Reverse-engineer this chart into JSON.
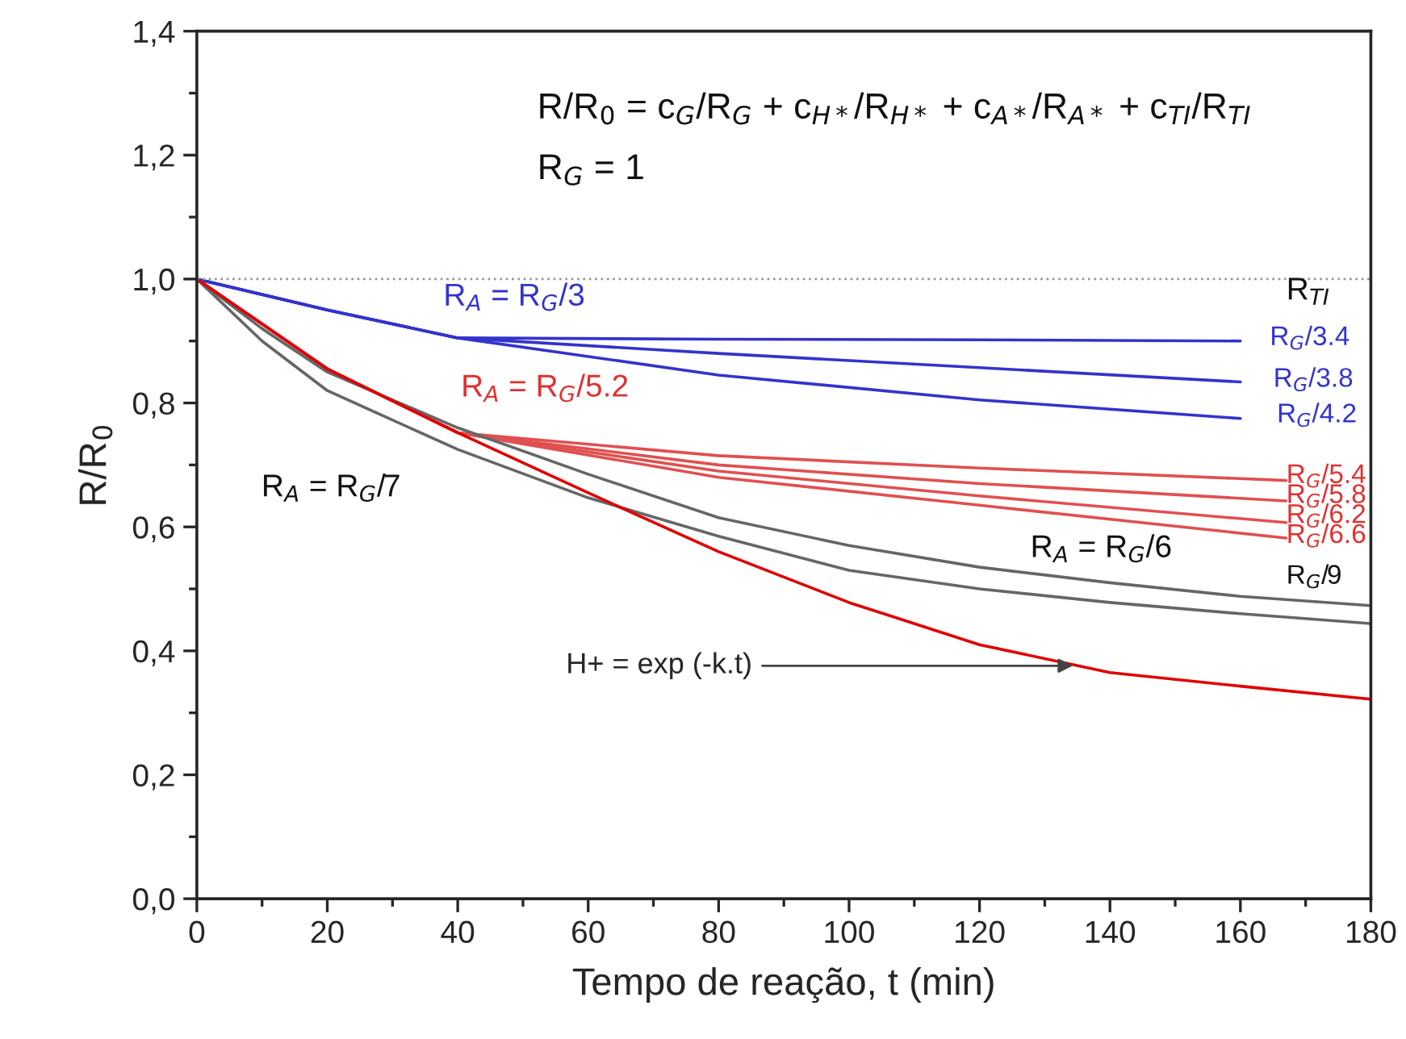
{
  "chart_data": {
    "type": "line",
    "xlabel": "Tempo de reação, t (min)",
    "ylabel": "R/R$_{0}$",
    "xlim": [
      0,
      180
    ],
    "xticks": [
      0,
      20,
      40,
      60,
      80,
      100,
      120,
      140,
      160,
      180
    ],
    "ylim": [
      0,
      1.4
    ],
    "yticks": [
      {
        "value": 0,
        "label": "0,0"
      },
      {
        "value": 0.2,
        "label": "0,2"
      },
      {
        "value": 0.4,
        "label": "0,4"
      },
      {
        "value": 0.6,
        "label": "0,6"
      },
      {
        "value": 0.8,
        "label": "0,8"
      },
      {
        "value": 1.0,
        "label": "1,0"
      },
      {
        "value": 1.2,
        "label": "1,2"
      },
      {
        "value": 1.4,
        "label": "1,4"
      }
    ],
    "grid": false,
    "marker": "none",
    "line_style": "solid",
    "ref_lines": [
      {
        "axis": "y",
        "value": 1.0,
        "color": "#999999",
        "line_style": "dotted"
      }
    ],
    "series": [
      {
        "color": "#3333cc",
        "x": [
          0,
          20,
          40,
          80,
          120,
          160
        ],
        "values": [
          1.0,
          0.95,
          0.905,
          0.903,
          0.902,
          0.9
        ]
      },
      {
        "color": "#3333cc",
        "x": [
          0,
          20,
          40,
          80,
          120,
          160
        ],
        "values": [
          1.0,
          0.95,
          0.905,
          0.88,
          0.857,
          0.834
        ]
      },
      {
        "color": "#3333cc",
        "x": [
          0,
          20,
          40,
          80,
          120,
          160
        ],
        "values": [
          1.0,
          0.95,
          0.905,
          0.845,
          0.805,
          0.775
        ]
      },
      {
        "color": "#e05050",
        "x": [
          0,
          20,
          40,
          80,
          120,
          167
        ],
        "values": [
          1.0,
          0.855,
          0.752,
          0.715,
          0.695,
          0.675
        ]
      },
      {
        "color": "#e05050",
        "x": [
          0,
          20,
          40,
          80,
          120,
          167
        ],
        "values": [
          1.0,
          0.855,
          0.752,
          0.7,
          0.67,
          0.642
        ]
      },
      {
        "color": "#e05050",
        "x": [
          0,
          20,
          40,
          80,
          120,
          167
        ],
        "values": [
          1.0,
          0.855,
          0.752,
          0.69,
          0.65,
          0.607
        ]
      },
      {
        "color": "#e05050",
        "x": [
          0,
          20,
          40,
          80,
          120,
          167
        ],
        "values": [
          1.0,
          0.855,
          0.752,
          0.68,
          0.635,
          0.582
        ]
      },
      {
        "color": "#666666",
        "x": [
          0,
          10,
          20,
          40,
          60,
          80,
          100,
          120,
          140,
          160,
          180
        ],
        "values": [
          1.0,
          0.92,
          0.85,
          0.76,
          0.685,
          0.615,
          0.57,
          0.535,
          0.51,
          0.488,
          0.473
        ]
      },
      {
        "color": "#666666",
        "x": [
          0,
          10,
          20,
          40,
          60,
          80,
          100,
          120,
          140,
          160,
          180
        ],
        "values": [
          1.0,
          0.9,
          0.82,
          0.725,
          0.647,
          0.585,
          0.53,
          0.5,
          0.478,
          0.46,
          0.444
        ]
      },
      {
        "color": "#e00000",
        "x": [
          0,
          20,
          40,
          60,
          80,
          100,
          120,
          140,
          160,
          180
        ],
        "values": [
          1.0,
          0.855,
          0.752,
          0.655,
          0.56,
          0.478,
          0.41,
          0.365,
          0.343,
          0.322
        ]
      }
    ],
    "annotations": [
      "R/R$_{0}$ = c$_{G}$/R$_{G}$ + c$_{H*}$/R$_{H*}$ + c$_{A*}$/R$_{A*}$ + c$_{TI}$/R$_{TI}$",
      "R$_{G}$ = 1",
      "R$_{A}$ = R$_{G}$/3",
      "R$_{A}$ = R$_{G}$/5.2",
      "R$_{A}$ = R$_{G}$/7",
      "R$_{A}$ = R$_{G}$/6",
      "R$_{G}$/9",
      "R$_{TI}$",
      "R$_{G}$/3.4",
      "R$_{G}$/3.8",
      "R$_{G}$/4.2",
      "R$_{G}$/5.4",
      "R$_{G}$/5.8",
      "R$_{G}$/6.2",
      "R$_{G}$/6.6",
      {
        "text": "H+ = exp (-k.t)",
        "x": 135,
        "y": 0.376
      }
    ]
  }
}
